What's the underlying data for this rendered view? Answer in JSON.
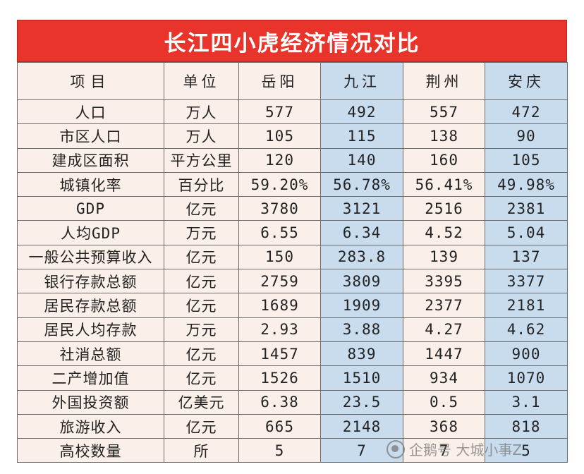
{
  "title": "长江四小虎经济情况对比",
  "headers": [
    "项目",
    "单位",
    "岳阳",
    "九江",
    "荆州",
    "安庆"
  ],
  "rows": [
    [
      "人口",
      "万人",
      "577",
      "492",
      "557",
      "472"
    ],
    [
      "市区人口",
      "万人",
      "105",
      "115",
      "138",
      "90"
    ],
    [
      "建成区面积",
      "平方公里",
      "120",
      "140",
      "160",
      "105"
    ],
    [
      "城镇化率",
      "百分比",
      "59.20%",
      "56.78%",
      "56.41%",
      "49.98%"
    ],
    [
      "GDP",
      "亿元",
      "3780",
      "3121",
      "2516",
      "2381"
    ],
    [
      "人均GDP",
      "万元",
      "6.55",
      "6.34",
      "4.52",
      "5.04"
    ],
    [
      "一般公共预算收入",
      "亿元",
      "150",
      "283.8",
      "139",
      "137"
    ],
    [
      "银行存款总额",
      "亿元",
      "2759",
      "3809",
      "3395",
      "3377"
    ],
    [
      "居民存款总额",
      "亿元",
      "1689",
      "1909",
      "2377",
      "2181"
    ],
    [
      "居民人均存款",
      "万元",
      "2.93",
      "3.88",
      "4.27",
      "4.62"
    ],
    [
      "社消总额",
      "亿元",
      "1457",
      "839",
      "1447",
      "900"
    ],
    [
      "二产增加值",
      "亿元",
      "1526",
      "1510",
      "934",
      "1070"
    ],
    [
      "外国投资额",
      "亿美元",
      "6.38",
      "23.5",
      "0.5",
      "3.1"
    ],
    [
      "旅游收入",
      "亿元",
      "665",
      "2148",
      "368",
      "818"
    ],
    [
      "高校数量",
      "所",
      "5",
      "7",
      "7",
      "5"
    ]
  ],
  "colors": {
    "title_bg": "#e8342b",
    "cell_pink": "#fbf0e9",
    "cell_blue": "#c9dcee"
  },
  "watermark": {
    "icon": "penguin-logo-icon",
    "text": "企鹅号 大城小事Z"
  }
}
